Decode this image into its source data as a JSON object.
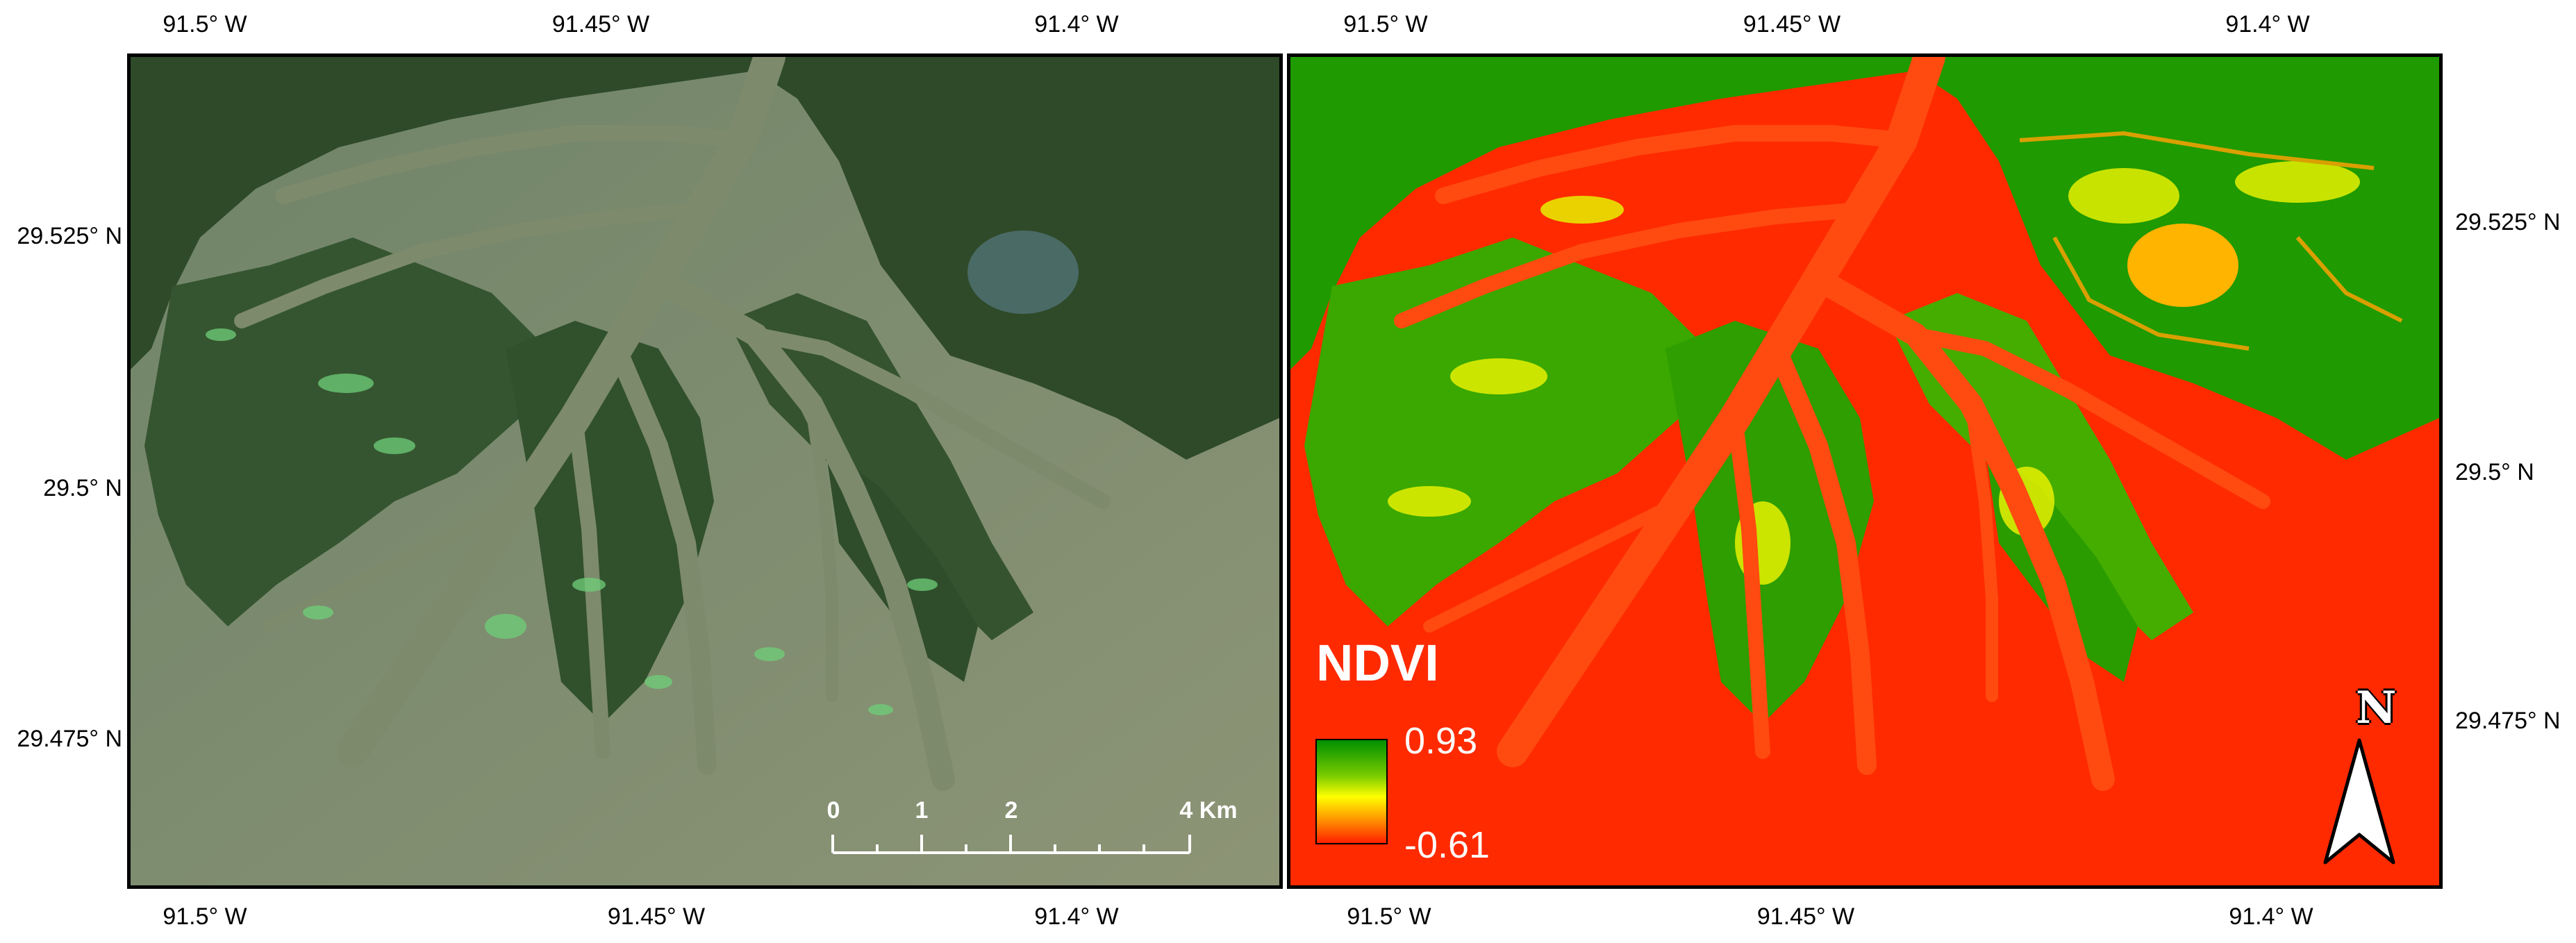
{
  "map": {
    "lon_ticks": [
      "91.5° W",
      "91.45° W",
      "91.4° W"
    ],
    "lat_ticks": [
      "29.525° N",
      "29.5° N",
      "29.475° N"
    ],
    "legend": {
      "title": "NDVI",
      "max": "0.93",
      "min": "-0.61"
    },
    "north_label": "N",
    "scale_bar": {
      "labels": [
        "0",
        "1",
        "2",
        "4 Km"
      ]
    },
    "colors": {
      "water_true": "#7c8a6b",
      "land_true": "#2f4a2a",
      "ndvi_high": "#009000",
      "ndvi_mid": "#ffff00",
      "ndvi_low": "#ff2000"
    },
    "panels": [
      "true-color",
      "ndvi"
    ]
  }
}
